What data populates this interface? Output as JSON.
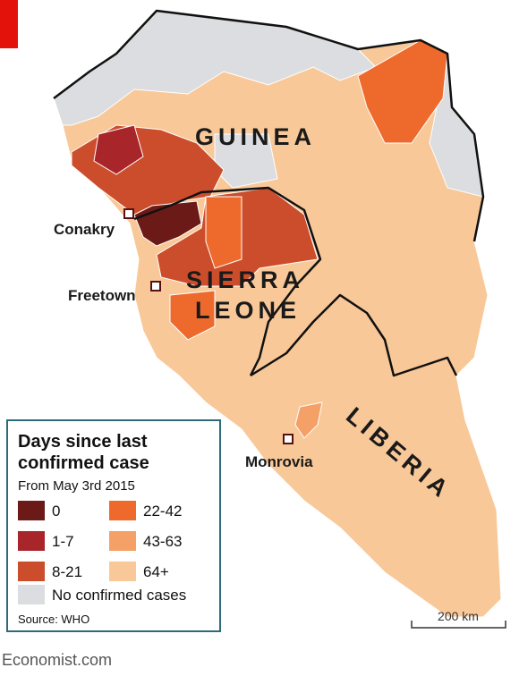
{
  "map": {
    "countries": {
      "guinea": "GUINEA",
      "sierra_leone": [
        "SIERRA",
        "LEONE"
      ],
      "liberia": "LIBERIA"
    },
    "cities": [
      "Conakry",
      "Freetown",
      "Monrovia"
    ],
    "legend": {
      "title": [
        "Days since last",
        "confirmed case"
      ],
      "subtitle": "From May 3rd 2015",
      "items": [
        {
          "label": "0",
          "color": "#6b1a17"
        },
        {
          "label": "1-7",
          "color": "#a8252a"
        },
        {
          "label": "8-21",
          "color": "#cc4d2c"
        },
        {
          "label": "22-42",
          "color": "#ee6a2c"
        },
        {
          "label": "43-63",
          "color": "#f4a066"
        },
        {
          "label": "64+",
          "color": "#f8c898"
        },
        {
          "label": "No confirmed cases",
          "color": "#dcdde0"
        }
      ],
      "source": "Source: WHO"
    },
    "scale": "200 km",
    "credit": "Economist.com"
  }
}
